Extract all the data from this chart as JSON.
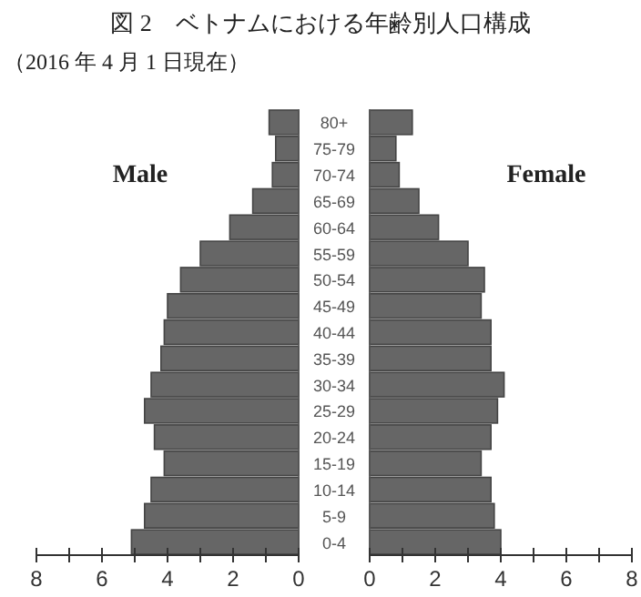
{
  "chart_data": [
    {
      "type": "bar",
      "orientation": "horizontal",
      "title": "図 2　ベトナムにおける年齢別人口構成",
      "subtitle": "（2016 年 4 月 1 日現在）",
      "annotations": [
        "Male"
      ],
      "tick_labels": "x",
      "series": [
        {
          "color": "#666666",
          "values": [
            0.9,
            0.7,
            0.8,
            1.4,
            2.1,
            3.0,
            3.6,
            4.0,
            4.1,
            4.2,
            4.5,
            4.7,
            4.4,
            4.1,
            4.5,
            4.7,
            5.1
          ]
        }
      ],
      "xlim": [
        8,
        0
      ],
      "xticks": [
        8,
        {
          "value": 7,
          "label": null
        },
        6,
        {
          "value": 5,
          "label": null
        },
        4,
        {
          "value": 3,
          "label": null
        },
        2,
        {
          "value": 1,
          "label": null
        },
        0
      ]
    },
    {
      "type": "bar",
      "orientation": "horizontal",
      "annotations": [
        "Female"
      ],
      "categories": [
        "80+",
        "75-79",
        "70-74",
        "65-69",
        "60-64",
        "55-59",
        "50-54",
        "45-49",
        "40-44",
        "35-39",
        "30-34",
        "25-29",
        "20-24",
        "15-19",
        "10-14",
        "5-9",
        "0-4"
      ],
      "series": [
        {
          "color": "#666666",
          "values": [
            1.3,
            0.8,
            0.9,
            1.5,
            2.1,
            3.0,
            3.5,
            3.4,
            3.7,
            3.7,
            4.1,
            3.9,
            3.7,
            3.4,
            3.7,
            3.8,
            4.0
          ]
        }
      ],
      "xlim": [
        0,
        8
      ],
      "xticks": [
        0,
        {
          "value": 1,
          "label": null
        },
        2,
        {
          "value": 3,
          "label": null
        },
        4,
        {
          "value": 5,
          "label": null
        },
        6,
        {
          "value": 7,
          "label": null
        },
        8
      ]
    }
  ]
}
